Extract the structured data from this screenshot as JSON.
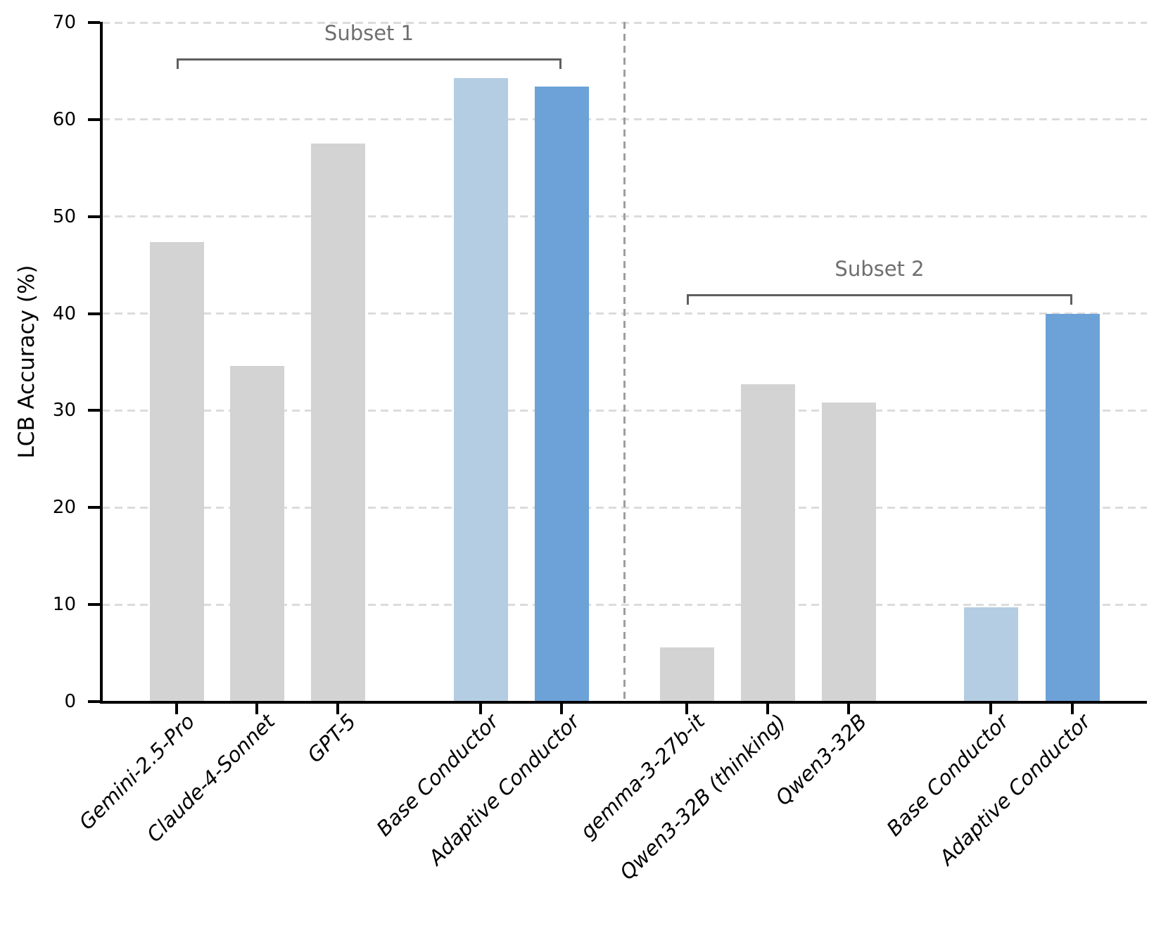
{
  "chart_data": {
    "type": "bar",
    "title": "",
    "ylabel": "LCB Accuracy (%)",
    "xlabel": "",
    "ylim": [
      0,
      70
    ],
    "yticks": [
      "0",
      "10",
      "20",
      "30",
      "40",
      "50",
      "60",
      "70"
    ],
    "grid": "horizontal dashed gridlines every 10, light gray",
    "legend_position": "none",
    "separator": "vertical dashed gray line between Subset 1 and Subset 2 groups",
    "categories": [
      "Gemini-2.5-Pro",
      "Claude-4-Sonnet",
      "GPT-5",
      "Base Conductor",
      "Adaptive Conductor",
      "gemma-3-27b-it",
      "Qwen3-32B (thinking)",
      "Qwen3-32B",
      "Base Conductor",
      "Adaptive Conductor"
    ],
    "values": [
      47.4,
      34.6,
      57.5,
      64.3,
      63.4,
      5.6,
      32.7,
      30.8,
      9.7,
      40.0
    ],
    "bars": [
      {
        "label": "Gemini-2.5-Pro",
        "value": 47.4,
        "role": "baseline",
        "subset": 1
      },
      {
        "label": "Claude-4-Sonnet",
        "value": 34.6,
        "role": "baseline",
        "subset": 1
      },
      {
        "label": "GPT-5",
        "value": 57.5,
        "role": "baseline",
        "subset": 1
      },
      {
        "label": "Base Conductor",
        "value": 64.3,
        "role": "base-conductor",
        "subset": 1
      },
      {
        "label": "Adaptive Conductor",
        "value": 63.4,
        "role": "adaptive-conductor",
        "subset": 1
      },
      {
        "label": "gemma-3-27b-it",
        "value": 5.6,
        "role": "baseline",
        "subset": 2
      },
      {
        "label": "Qwen3-32B (thinking)",
        "value": 32.7,
        "role": "baseline",
        "subset": 2
      },
      {
        "label": "Qwen3-32B",
        "value": 30.8,
        "role": "baseline",
        "subset": 2
      },
      {
        "label": "Base Conductor",
        "value": 9.7,
        "role": "base-conductor",
        "subset": 2
      },
      {
        "label": "Adaptive Conductor",
        "value": 40.0,
        "role": "adaptive-conductor",
        "subset": 2
      }
    ],
    "annotations": [
      {
        "label": "Subset 1"
      },
      {
        "label": "Subset 2"
      }
    ],
    "colors": {
      "baseline": "#d3d3d3",
      "base-conductor": "#b4cde2",
      "adaptive-conductor": "#6da2d8",
      "bracket": "#5f5f5f",
      "subset_title": "#6e6e6e",
      "gridline": "#dcdcdc",
      "separator": "#9e9e9e",
      "axis": "#000000"
    }
  }
}
